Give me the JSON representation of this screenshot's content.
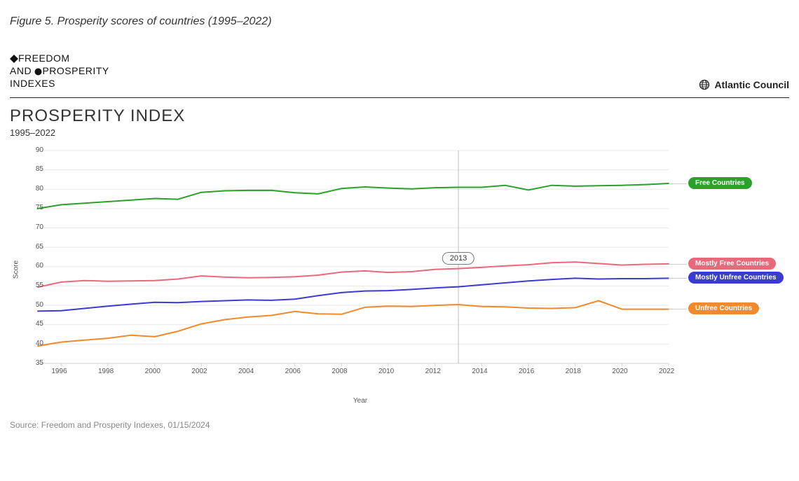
{
  "figure_caption": "Figure 5. Prosperity scores of countries (1995–2022)",
  "brand": {
    "line1_pre": "FREEDOM",
    "line2_pre": "AND ",
    "line2_post": "PROSPERITY",
    "line3": "INDEXES"
  },
  "org_name": "Atlantic Council",
  "chart": {
    "type": "line",
    "title": "PROSPERITY INDEX",
    "subtitle": "1995–2022",
    "x_label": "Year",
    "y_label": "Score",
    "background_color": "#ffffff",
    "grid_color": "#e9e9e9",
    "axis_color": "#cfcfcf",
    "text_color": "#555555",
    "title_fontsize": 24,
    "label_fontsize": 10,
    "tick_fontsize": 10,
    "line_width": 2,
    "xlim": [
      1995,
      2022
    ],
    "ylim": [
      35,
      90
    ],
    "ytick_step": 5,
    "xtick_step": 2,
    "xtick_start": 1996,
    "hover_marker": {
      "x": 2013,
      "label": "2013",
      "line_color": "#bdbdbd"
    },
    "series": [
      {
        "name": "Free Countries",
        "label": "Free Countries",
        "color": "#2ba02b",
        "values": [
          75.0,
          76.0,
          76.4,
          76.8,
          77.2,
          77.6,
          77.4,
          79.2,
          79.6,
          79.7,
          79.7,
          79.1,
          78.8,
          80.2,
          80.6,
          80.3,
          80.1,
          80.4,
          80.5,
          80.5,
          81.0,
          79.8,
          81.0,
          80.8,
          80.9,
          81.0,
          81.2,
          81.5
        ]
      },
      {
        "name": "Mostly Free Countries",
        "label": "Mostly Free Countries",
        "color": "#e86a7a",
        "values": [
          54.7,
          56.0,
          56.4,
          56.2,
          56.3,
          56.4,
          56.8,
          57.6,
          57.3,
          57.1,
          57.2,
          57.4,
          57.8,
          58.6,
          58.9,
          58.5,
          58.7,
          59.3,
          59.5,
          59.8,
          60.2,
          60.5,
          61.0,
          61.2,
          60.8,
          60.4,
          60.6,
          60.7
        ]
      },
      {
        "name": "Mostly Unfree Countries",
        "label": "Mostly Unfree Countries",
        "color": "#3b3bd1",
        "values": [
          48.5,
          48.6,
          49.2,
          49.8,
          50.3,
          50.8,
          50.7,
          51.0,
          51.2,
          51.4,
          51.3,
          51.6,
          52.5,
          53.3,
          53.7,
          53.8,
          54.1,
          54.5,
          54.8,
          55.3,
          55.8,
          56.3,
          56.7,
          57.0,
          56.8,
          56.9,
          56.9,
          57.0
        ]
      },
      {
        "name": "Unfree Countries",
        "label": "Unfree Countries",
        "color": "#f08a2c",
        "values": [
          39.5,
          40.5,
          41.0,
          41.5,
          42.3,
          41.9,
          43.3,
          45.2,
          46.3,
          47.0,
          47.4,
          48.4,
          47.8,
          47.7,
          49.5,
          49.8,
          49.7,
          50.0,
          50.2,
          49.7,
          49.6,
          49.3,
          49.2,
          49.4,
          51.2,
          49.0,
          49.0,
          49.0
        ]
      }
    ],
    "years": [
      1995,
      1996,
      1997,
      1998,
      1999,
      2000,
      2001,
      2002,
      2003,
      2004,
      2005,
      2006,
      2007,
      2008,
      2009,
      2010,
      2011,
      2012,
      2013,
      2014,
      2015,
      2016,
      2017,
      2018,
      2019,
      2020,
      2021,
      2022
    ]
  },
  "source": "Source: Freedom and Prosperity Indexes, 01/15/2024"
}
